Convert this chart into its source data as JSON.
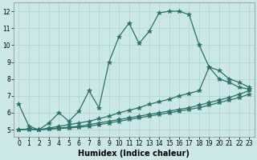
{
  "bg_color": "#cce8e6",
  "grid_color": "#b0d8d6",
  "line_color": "#2a7068",
  "line_width": 0.9,
  "marker": "*",
  "marker_size": 4,
  "xlabel": "Humidex (Indice chaleur)",
  "xlabel_fontsize": 7,
  "xlim": [
    -0.5,
    23.5
  ],
  "ylim": [
    4.6,
    12.5
  ],
  "yticks": [
    5,
    6,
    7,
    8,
    9,
    10,
    11,
    12
  ],
  "xticks": [
    0,
    1,
    2,
    3,
    4,
    5,
    6,
    7,
    8,
    9,
    10,
    11,
    12,
    13,
    14,
    15,
    16,
    17,
    18,
    19,
    20,
    21,
    22,
    23
  ],
  "tick_fontsize": 5.5,
  "series1_x": [
    0,
    1,
    2,
    3,
    4,
    5,
    6,
    7,
    8,
    9,
    10,
    11,
    12,
    13,
    14,
    15,
    16,
    17,
    18,
    19,
    20,
    21,
    22,
    23
  ],
  "series1_y": [
    6.5,
    5.2,
    5.0,
    5.4,
    6.0,
    5.5,
    6.1,
    7.3,
    6.3,
    9.0,
    10.5,
    11.3,
    10.1,
    10.8,
    11.9,
    12.0,
    12.0,
    11.8,
    10.0,
    8.7,
    8.0,
    7.8,
    7.5,
    7.4
  ],
  "series2_x": [
    0,
    1,
    2,
    3,
    4,
    5,
    6,
    7,
    8,
    9,
    10,
    11,
    12,
    13,
    14,
    15,
    16,
    17,
    18,
    19,
    20,
    21,
    22,
    23
  ],
  "series2_y": [
    5.0,
    5.05,
    5.0,
    5.1,
    5.2,
    5.3,
    5.4,
    5.5,
    5.65,
    5.8,
    6.0,
    6.15,
    6.3,
    6.5,
    6.65,
    6.8,
    7.0,
    7.15,
    7.3,
    8.7,
    8.5,
    8.0,
    7.8,
    7.5
  ],
  "series3_x": [
    0,
    1,
    2,
    3,
    4,
    5,
    6,
    7,
    8,
    9,
    10,
    11,
    12,
    13,
    14,
    15,
    16,
    17,
    18,
    19,
    20,
    21,
    22,
    23
  ],
  "series3_y": [
    5.0,
    5.03,
    5.0,
    5.05,
    5.1,
    5.15,
    5.2,
    5.3,
    5.4,
    5.5,
    5.6,
    5.7,
    5.8,
    5.9,
    6.0,
    6.1,
    6.2,
    6.3,
    6.45,
    6.6,
    6.75,
    6.9,
    7.1,
    7.3
  ],
  "series4_x": [
    0,
    1,
    2,
    3,
    4,
    5,
    6,
    7,
    8,
    9,
    10,
    11,
    12,
    13,
    14,
    15,
    16,
    17,
    18,
    19,
    20,
    21,
    22,
    23
  ],
  "series4_y": [
    5.0,
    5.02,
    5.0,
    5.03,
    5.07,
    5.1,
    5.15,
    5.2,
    5.3,
    5.4,
    5.5,
    5.6,
    5.7,
    5.8,
    5.9,
    6.0,
    6.1,
    6.2,
    6.3,
    6.45,
    6.6,
    6.75,
    6.9,
    7.1
  ]
}
